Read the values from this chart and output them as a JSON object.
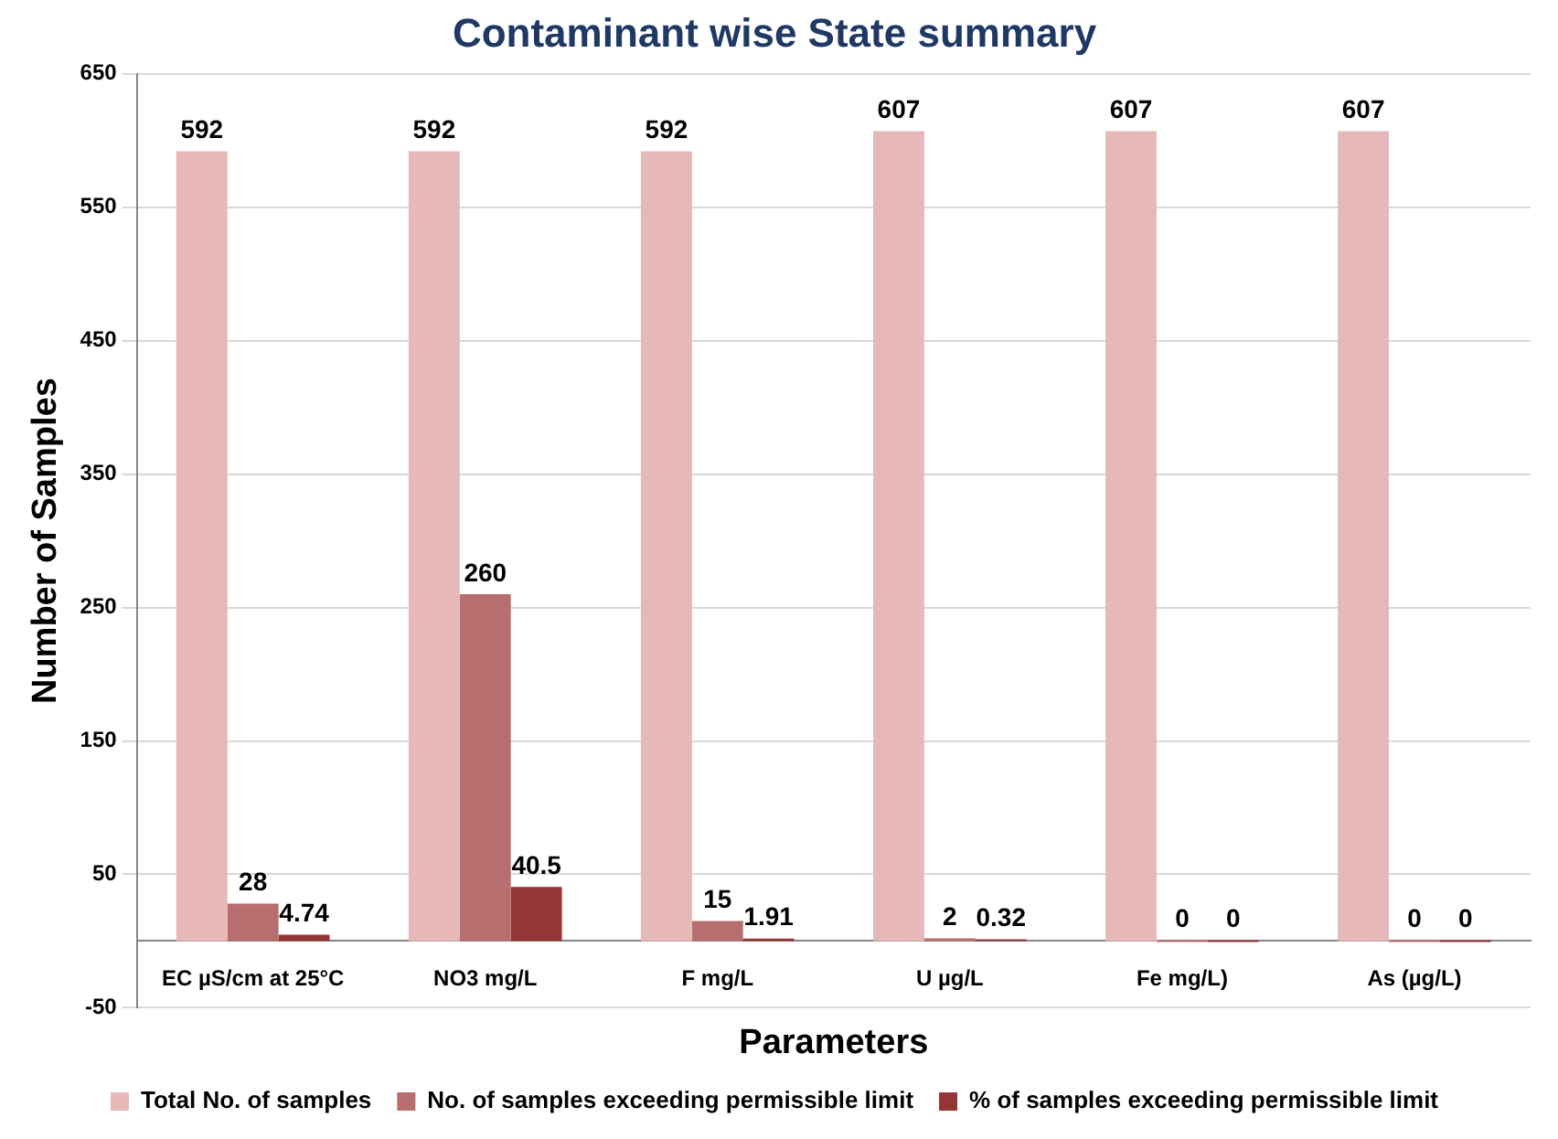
{
  "chart_data": {
    "type": "bar",
    "title": "Contaminant wise State summary",
    "xlabel": "Parameters",
    "ylabel": "Number of Samples",
    "categories": [
      "EC µS/cm at 25°C",
      "NO3 mg/L",
      "F mg/L",
      "U µg/L",
      "Fe mg/L)",
      "As (µg/L)"
    ],
    "series": [
      {
        "name": "Total No. of samples",
        "color": "#e6b8b7",
        "values": [
          592,
          592,
          592,
          607,
          607,
          607
        ]
      },
      {
        "name": "No. of samples exceeding permissible limit",
        "color": "#b76e6e",
        "values": [
          28,
          260,
          15,
          2,
          0,
          0
        ]
      },
      {
        "name": "% of samples exceeding permissible limit",
        "color": "#943634",
        "values": [
          4.74,
          40.5,
          1.91,
          0.32,
          0,
          0
        ]
      }
    ],
    "ylim": [
      -50,
      650
    ],
    "yticks": [
      -50,
      50,
      150,
      250,
      350,
      450,
      550,
      650
    ],
    "grid": "y",
    "legend": "bottom",
    "data_labels": true
  }
}
